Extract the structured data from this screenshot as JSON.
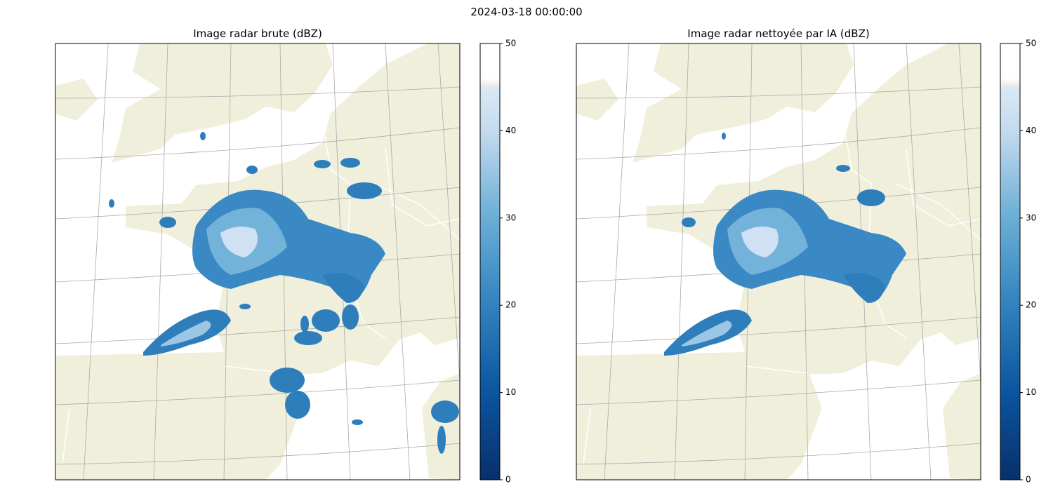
{
  "title": "2024-03-18 00:00:00",
  "panels": [
    {
      "title": "Image radar brute (dBZ)",
      "colorbar": {
        "lim": [
          0,
          50
        ],
        "ticks": [
          0,
          10,
          20,
          30,
          40,
          50
        ]
      }
    },
    {
      "title": "Image radar nettoyée par IA (dBZ)",
      "colorbar": {
        "lim": [
          0,
          50
        ],
        "ticks": [
          0,
          10,
          20,
          30,
          40,
          50
        ]
      }
    }
  ]
}
